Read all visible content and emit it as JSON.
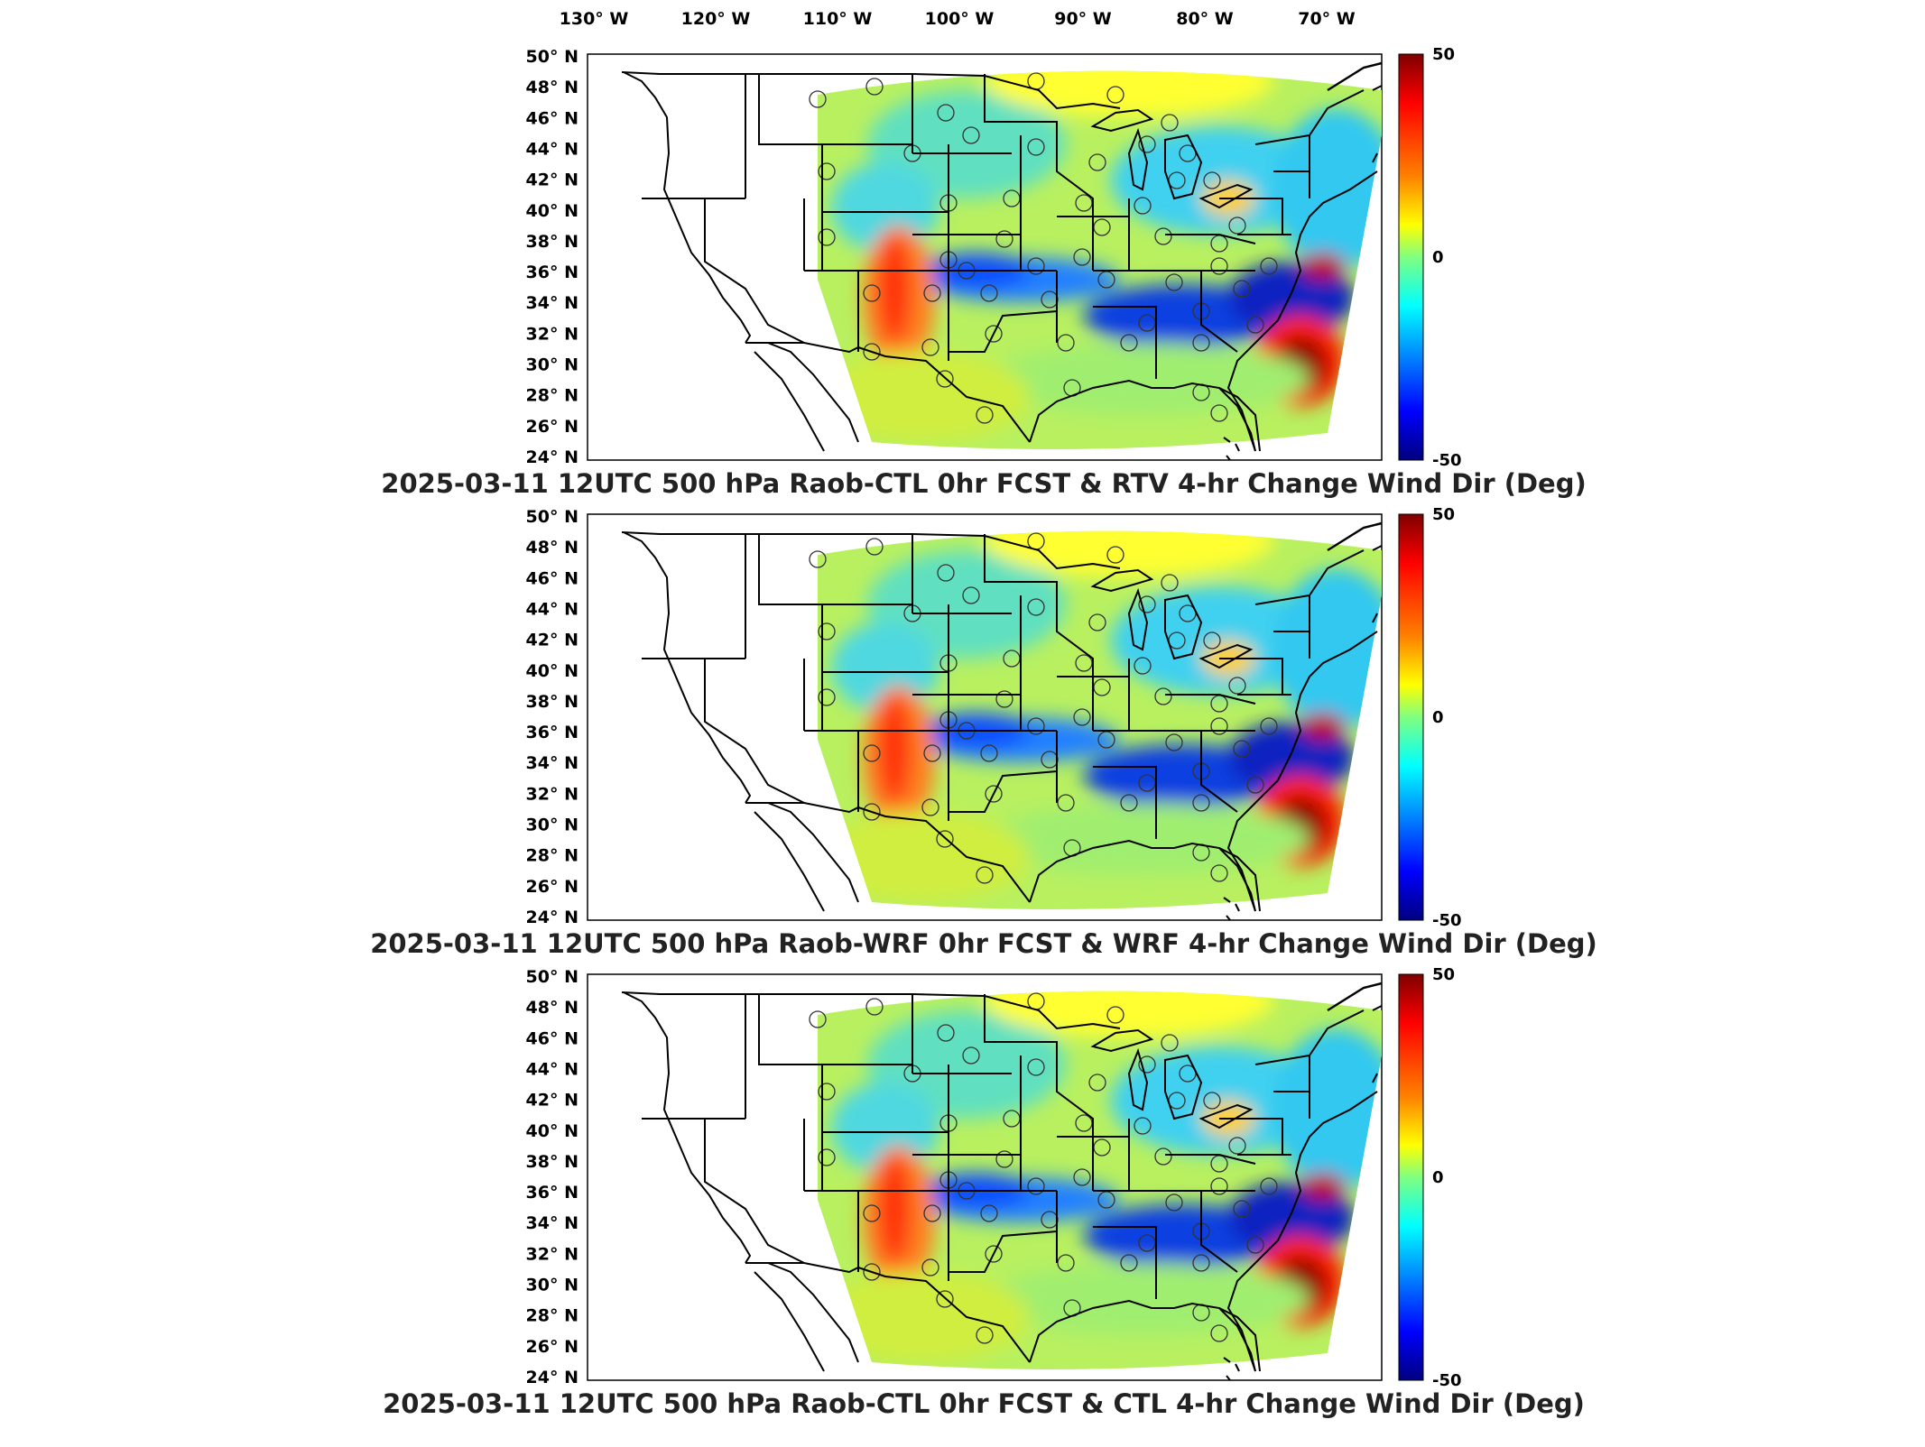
{
  "lon_labels": [
    "130",
    "120",
    "110",
    "100",
    "90",
    "80",
    "70"
  ],
  "lon_unit": "W",
  "lat_labels": [
    "50",
    "48",
    "46",
    "44",
    "42",
    "40",
    "38",
    "36",
    "34",
    "32",
    "30",
    "28",
    "26",
    "24"
  ],
  "lat_unit": "N",
  "degree_symbol": "°",
  "colorbar": {
    "max": "50",
    "mid": "0",
    "min": "-50",
    "colors": [
      "#7f0000",
      "#ff0000",
      "#ff8000",
      "#ffff00",
      "#80ff80",
      "#00ffff",
      "#0080ff",
      "#0000ff",
      "#00007f"
    ]
  },
  "panels": [
    {
      "title": "2025-03-11 12UTC 500 hPa Raob-CTL 0hr FCST & RTV 4-hr Change Wind Dir (Deg)"
    },
    {
      "title": "2025-03-11 12UTC 500 hPa Raob-WRF 0hr FCST & WRF 4-hr Change Wind Dir (Deg)"
    },
    {
      "title": "2025-03-11 12UTC 500 hPa Raob-CTL 0hr FCST & CTL 4-hr Change Wind Dir (Deg)"
    }
  ],
  "raob_site_count": 52
}
